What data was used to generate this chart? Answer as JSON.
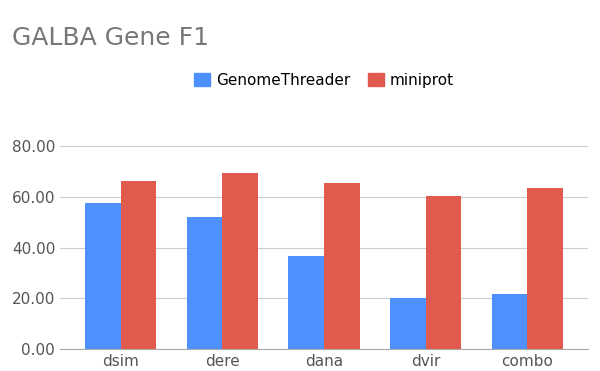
{
  "title": "GALBA Gene F1",
  "categories": [
    "dsim",
    "dere",
    "dana",
    "dvir",
    "combo"
  ],
  "series": [
    {
      "label": "GenomeThreader",
      "values": [
        57.5,
        52.0,
        36.5,
        20.0,
        21.5
      ],
      "color": "#4d90fe"
    },
    {
      "label": "miniprot",
      "values": [
        66.5,
        69.5,
        65.5,
        60.5,
        63.5
      ],
      "color": "#E05A4E"
    }
  ],
  "ylim": [
    0,
    88
  ],
  "yticks": [
    0.0,
    20.0,
    40.0,
    60.0,
    80.0
  ],
  "ytick_labels": [
    "0.00",
    "20.00",
    "40.00",
    "60.00",
    "80.00"
  ],
  "title_fontsize": 18,
  "legend_fontsize": 11,
  "tick_fontsize": 11,
  "bar_width": 0.35,
  "background_color": "#ffffff",
  "grid_color": "#cccccc"
}
